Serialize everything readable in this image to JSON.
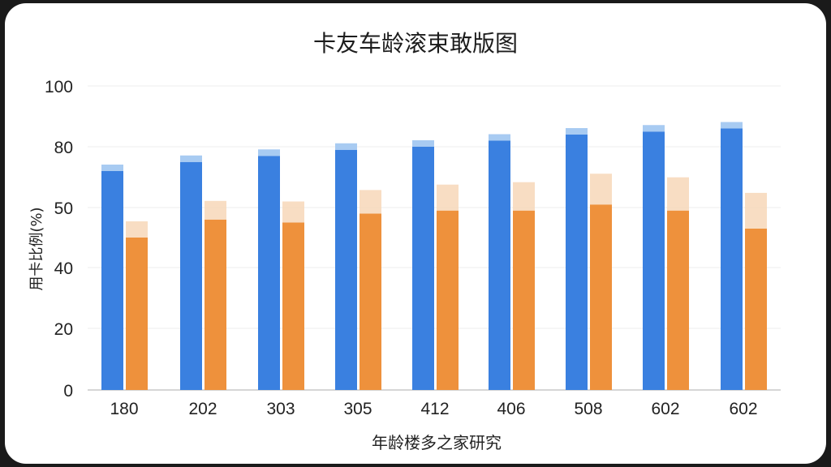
{
  "chart_data": {
    "type": "bar",
    "title": "卡友车龄滚束敢版图",
    "xlabel": "年龄楼多之家研究",
    "ylabel": "用卡比例(%)",
    "y_tick_labels": [
      "0",
      "20",
      "40",
      "50",
      "80",
      "100"
    ],
    "categories": [
      "180",
      "202",
      "303",
      "305",
      "412",
      "406",
      "508",
      "602",
      "602"
    ],
    "series": [
      {
        "values": [
          72,
          75,
          77,
          79,
          80,
          82,
          84,
          85,
          86
        ],
        "color": "#3a80e0"
      },
      {
        "values": [
          50,
          56,
          55,
          58,
          59,
          59,
          61,
          59,
          53
        ],
        "color": "#ee913c"
      }
    ],
    "grid": true
  }
}
